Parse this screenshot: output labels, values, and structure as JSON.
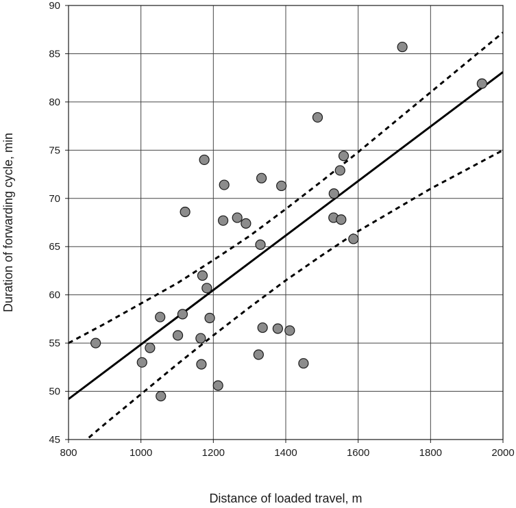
{
  "chart_data": {
    "type": "scatter",
    "title": "",
    "xlabel": "Distance of loaded travel, m",
    "ylabel": "Duration of forwarding cycle, min",
    "xlim": [
      800,
      2000
    ],
    "ylim": [
      45,
      90
    ],
    "xticks": [
      800,
      1000,
      1200,
      1400,
      1600,
      1800,
      2000
    ],
    "yticks": [
      45,
      50,
      55,
      60,
      65,
      70,
      75,
      80,
      85,
      90
    ],
    "grid": true,
    "legend": "none",
    "marker_color": "#8c8c8c",
    "line_color": "#000000",
    "points": [
      {
        "x": 875,
        "y": 55.0
      },
      {
        "x": 1003,
        "y": 53.0
      },
      {
        "x": 1025,
        "y": 54.5
      },
      {
        "x": 1053,
        "y": 57.7
      },
      {
        "x": 1055,
        "y": 49.5
      },
      {
        "x": 1102,
        "y": 55.8
      },
      {
        "x": 1115,
        "y": 58.0
      },
      {
        "x": 1122,
        "y": 68.6
      },
      {
        "x": 1165,
        "y": 55.5
      },
      {
        "x": 1167,
        "y": 52.8
      },
      {
        "x": 1170,
        "y": 62.0
      },
      {
        "x": 1175,
        "y": 74.0
      },
      {
        "x": 1182,
        "y": 60.7
      },
      {
        "x": 1190,
        "y": 57.6
      },
      {
        "x": 1213,
        "y": 50.6
      },
      {
        "x": 1227,
        "y": 67.7
      },
      {
        "x": 1230,
        "y": 71.4
      },
      {
        "x": 1266,
        "y": 68.0
      },
      {
        "x": 1290,
        "y": 67.4
      },
      {
        "x": 1325,
        "y": 53.8
      },
      {
        "x": 1330,
        "y": 65.2
      },
      {
        "x": 1333,
        "y": 72.1
      },
      {
        "x": 1336,
        "y": 56.6
      },
      {
        "x": 1378,
        "y": 56.5
      },
      {
        "x": 1388,
        "y": 71.3
      },
      {
        "x": 1411,
        "y": 56.3
      },
      {
        "x": 1449,
        "y": 52.9
      },
      {
        "x": 1488,
        "y": 78.4
      },
      {
        "x": 1532,
        "y": 68.0
      },
      {
        "x": 1533,
        "y": 70.5
      },
      {
        "x": 1550,
        "y": 72.9
      },
      {
        "x": 1553,
        "y": 67.8
      },
      {
        "x": 1560,
        "y": 74.4
      },
      {
        "x": 1587,
        "y": 65.8
      },
      {
        "x": 1722,
        "y": 85.7
      },
      {
        "x": 1942,
        "y": 81.9
      }
    ],
    "regression": {
      "style": "solid",
      "x": [
        800,
        2000
      ],
      "y": [
        49.2,
        83.1
      ]
    },
    "bounds": [
      {
        "style": "dashed",
        "x": [
          800,
          900,
          1000,
          1100,
          1200,
          1300,
          1400,
          1500,
          1600,
          1700,
          1800,
          1900,
          2000
        ],
        "y": [
          55.0,
          57.0,
          59.1,
          61.2,
          63.6,
          66.1,
          68.9,
          71.8,
          74.8,
          77.9,
          81.0,
          84.1,
          87.2
        ]
      },
      {
        "style": "dashed",
        "x": [
          800,
          900,
          1000,
          1100,
          1200,
          1300,
          1400,
          1500,
          1600,
          1700,
          1800,
          1900,
          2000
        ],
        "y": [
          43.4,
          46.6,
          49.7,
          52.8,
          55.8,
          58.7,
          61.5,
          64.1,
          66.6,
          68.8,
          71.0,
          73.0,
          75.0
        ]
      }
    ]
  }
}
